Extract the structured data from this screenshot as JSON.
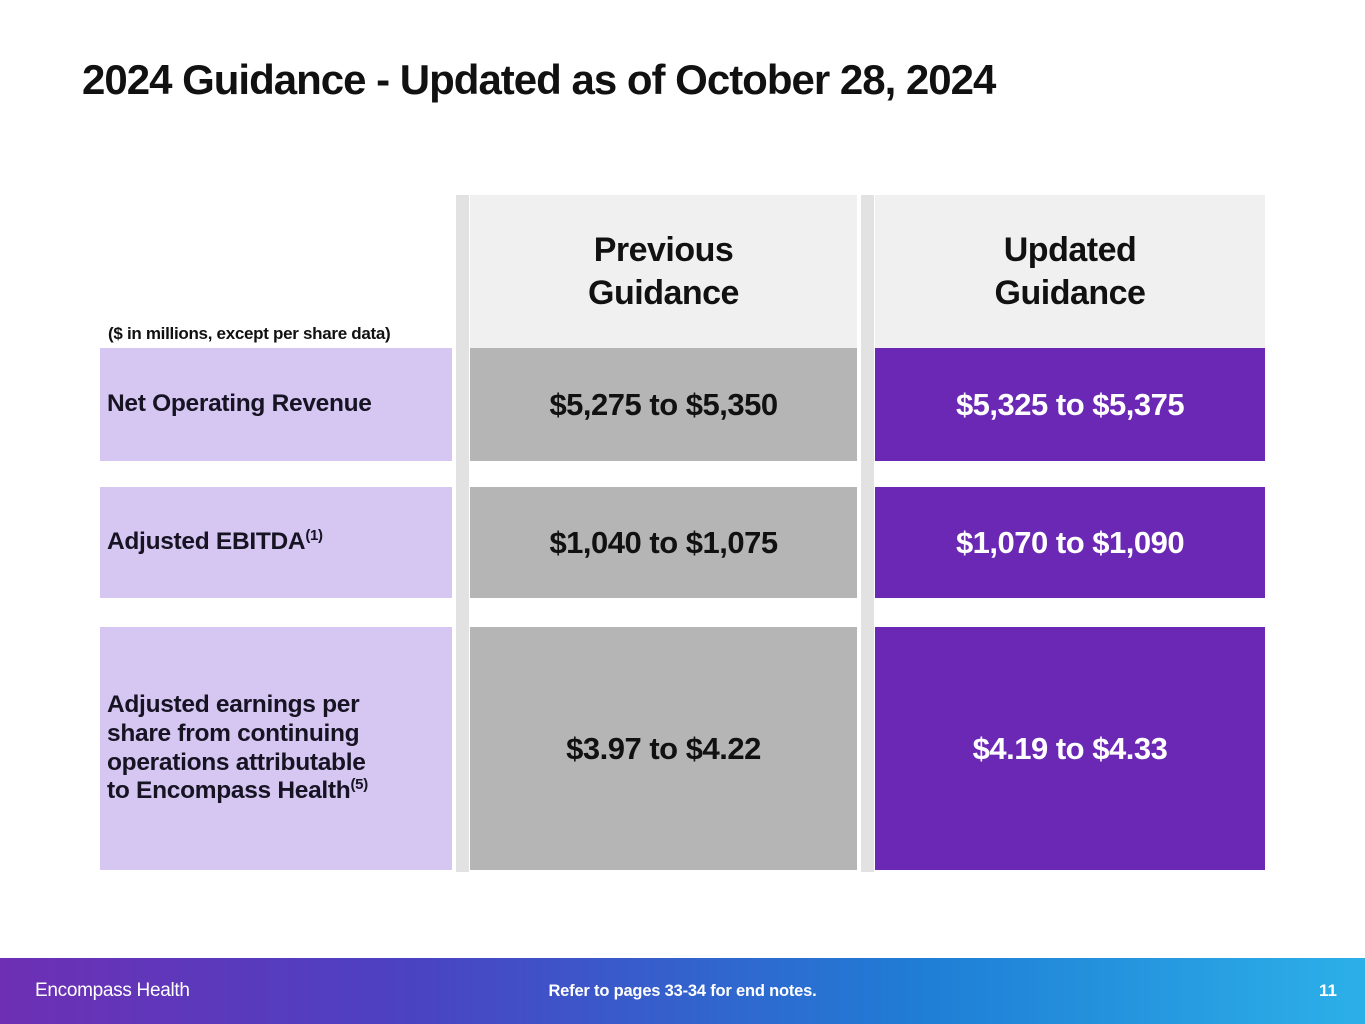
{
  "slide": {
    "title": "2024 Guidance - Updated as of October 28, 2024",
    "units_note": "($ in millions, except per share data)"
  },
  "table": {
    "column_headers": [
      "Previous Guidance",
      "Updated Guidance"
    ],
    "rows": [
      {
        "label": "Net Operating Revenue",
        "superscript": "",
        "previous": "$5,275 to $5,350",
        "updated": "$5,325 to $5,375"
      },
      {
        "label": "Adjusted EBITDA",
        "superscript": "(1)",
        "previous": "$1,040 to $1,075",
        "updated": "$1,070 to $1,090"
      },
      {
        "label": "Adjusted earnings per\nshare from continuing\noperations attributable\nto Encompass Health",
        "superscript": "(5)",
        "previous": "$3.97 to $4.22",
        "updated": "$4.19 to $4.33"
      }
    ]
  },
  "footer": {
    "company": "Encompass Health",
    "note": "Refer to pages 33-34 for end notes.",
    "page_number": "11"
  },
  "colors": {
    "header_cell": "#f0f0f0",
    "previous_cell": "#b5b5b5",
    "updated_cell": "#6a28b4",
    "label_cell": "#d6c6f2",
    "divider_stripe": "#e2e2e2",
    "footer_gradient_start": "#6e2fb4",
    "footer_gradient_end": "#2cb0e8"
  }
}
